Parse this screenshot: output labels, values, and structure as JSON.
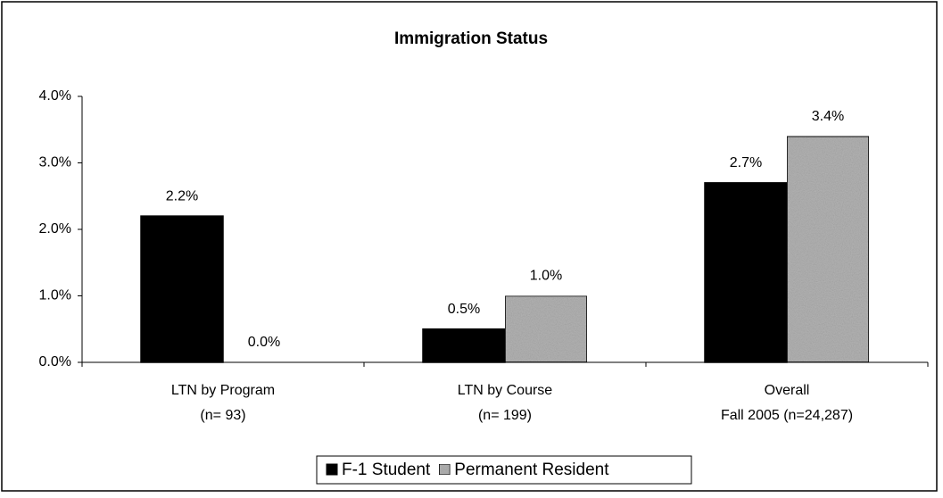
{
  "chart_data": {
    "type": "bar",
    "title": "Immigration Status",
    "categories": [
      [
        "LTN by Program",
        "(n= 93)"
      ],
      [
        "LTN by Course",
        "(n= 199)"
      ],
      [
        "Overall",
        "Fall 2005 (n=24,287)"
      ]
    ],
    "series": [
      {
        "name": "F-1 Student",
        "color": "#000000",
        "values": [
          2.2,
          0.5,
          2.7
        ],
        "value_labels": [
          "2.2%",
          "0.5%",
          "2.7%"
        ]
      },
      {
        "name": "Permanent Resident",
        "color": "#b3b3b3",
        "values": [
          0.0,
          1.0,
          3.4
        ],
        "value_labels": [
          "0.0%",
          "1.0%",
          "3.4%"
        ]
      }
    ],
    "ylim": [
      0,
      4
    ],
    "yticks": [
      {
        "value": 0,
        "label": "0.0%"
      },
      {
        "value": 1,
        "label": "1.0%"
      },
      {
        "value": 2,
        "label": "2.0%"
      },
      {
        "value": 3,
        "label": "3.0%"
      },
      {
        "value": 4,
        "label": "4.0%"
      }
    ],
    "legend": "bottom"
  }
}
